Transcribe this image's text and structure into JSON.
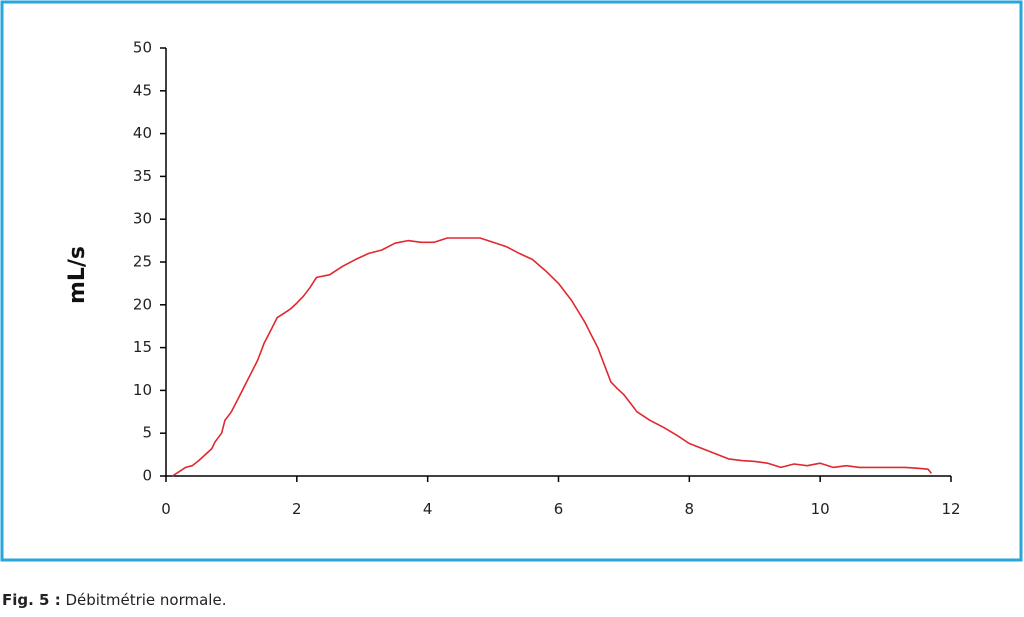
{
  "chart_data": {
    "type": "line",
    "ylabel": "mL/s",
    "x": [
      0.1,
      0.2,
      0.3,
      0.4,
      0.5,
      0.6,
      0.7,
      0.75,
      0.85,
      0.9,
      1.0,
      1.1,
      1.2,
      1.3,
      1.4,
      1.5,
      1.6,
      1.7,
      1.8,
      1.9,
      2.0,
      2.1,
      2.2,
      2.3,
      2.5,
      2.7,
      2.9,
      3.1,
      3.3,
      3.5,
      3.7,
      3.9,
      4.1,
      4.3,
      4.6,
      4.8,
      5.0,
      5.2,
      5.4,
      5.6,
      5.8,
      6.0,
      6.2,
      6.4,
      6.5,
      6.6,
      6.7,
      6.8,
      6.9,
      7.0,
      7.1,
      7.2,
      7.4,
      7.6,
      7.8,
      8.0,
      8.2,
      8.4,
      8.6,
      8.8,
      9.0,
      9.2,
      9.4,
      9.6,
      9.8,
      10.0,
      10.2,
      10.4,
      10.6,
      11.0,
      11.3,
      11.5,
      11.65,
      11.7
    ],
    "values": [
      0,
      0.5,
      1,
      1.2,
      1.8,
      2.5,
      3.2,
      4,
      5,
      6.5,
      7.5,
      9,
      10.5,
      12,
      13.5,
      15.5,
      17,
      18.5,
      19,
      19.5,
      20.2,
      21,
      22,
      23.2,
      23.5,
      24.5,
      25.3,
      26,
      26.4,
      27.2,
      27.5,
      27.3,
      27.3,
      27.8,
      27.8,
      27.8,
      27.3,
      26.8,
      26,
      25.3,
      24,
      22.5,
      20.5,
      18,
      16.5,
      15,
      13,
      11,
      10.2,
      9.5,
      8.5,
      7.5,
      6.5,
      5.7,
      4.8,
      3.8,
      3.2,
      2.6,
      2.0,
      1.8,
      1.7,
      1.5,
      1.0,
      1.4,
      1.2,
      1.5,
      1.0,
      1.2,
      1.0,
      1.0,
      1.0,
      0.9,
      0.8,
      0.3
    ],
    "color": "#e0282e",
    "xlim": [
      0,
      12
    ],
    "xticks": [
      0,
      2,
      4,
      6,
      8,
      10,
      12
    ],
    "ylim": [
      0,
      50
    ],
    "yticks": [
      0,
      5,
      10,
      15,
      20,
      25,
      30,
      35,
      40,
      45,
      50
    ]
  },
  "caption": {
    "label": "Fig. 5 :",
    "text": "Débitmétrie normale."
  }
}
